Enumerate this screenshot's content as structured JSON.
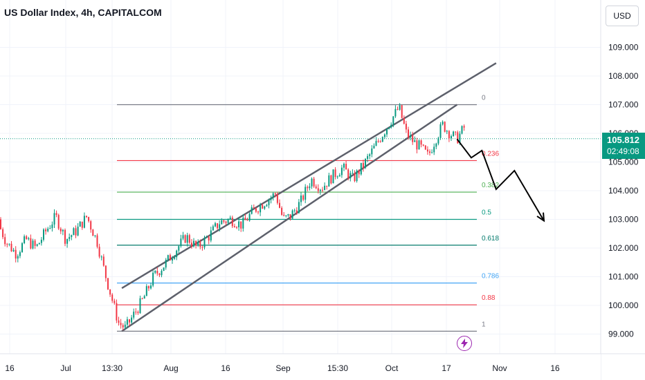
{
  "header": {
    "title": "US Dollar Index, 4h, CAPITALCOM"
  },
  "currency_button": {
    "label": "USD"
  },
  "price_tag": {
    "price": "105.812",
    "countdown": "02:49:08",
    "color": "#089981"
  },
  "chart_data": {
    "type": "candlestick",
    "title": "US Dollar Index, 4h, CAPITALCOM",
    "y_ticks": [
      "109.000",
      "108.000",
      "107.000",
      "106.000",
      "105.000",
      "104.000",
      "103.000",
      "102.000",
      "101.000",
      "100.000",
      "99.000"
    ],
    "y_range": [
      98.5,
      110.3
    ],
    "x_ticks": [
      "16",
      "Jul",
      "13:30",
      "Aug",
      "16",
      "Sep",
      "15:30",
      "Oct",
      "17",
      "Nov",
      "16"
    ],
    "current_price": 105.812,
    "price_path": [
      [
        "Jun 12",
        103.0
      ],
      [
        "Jun 15",
        102.2
      ],
      [
        "Jun 18",
        101.8
      ],
      [
        "Jun 21",
        102.3
      ],
      [
        "Jun 24",
        102.0
      ],
      [
        "Jun 27",
        102.6
      ],
      [
        "Jun 30",
        103.1
      ],
      [
        "Jul 3",
        102.3
      ],
      [
        "Jul 6",
        102.6
      ],
      [
        "Jul 9",
        103.1
      ],
      [
        "Jul 12",
        102.2
      ],
      [
        "Jul 14",
        101.2
      ],
      [
        "Jul 16",
        100.3
      ],
      [
        "Jul 18",
        99.4
      ],
      [
        "Jul 20",
        99.2
      ],
      [
        "Jul 22",
        99.6
      ],
      [
        "Jul 25",
        100.2
      ],
      [
        "Jul 28",
        101.0
      ],
      [
        "Jul 31",
        101.4
      ],
      [
        "Aug 3",
        101.9
      ],
      [
        "Aug 6",
        102.4
      ],
      [
        "Aug 9",
        102.0
      ],
      [
        "Aug 12",
        102.4
      ],
      [
        "Aug 15",
        102.9
      ],
      [
        "Aug 18",
        103.0
      ],
      [
        "Aug 21",
        102.8
      ],
      [
        "Aug 24",
        103.3
      ],
      [
        "Aug 27",
        103.6
      ],
      [
        "Aug 30",
        103.9
      ],
      [
        "Sep 1",
        103.0
      ],
      [
        "Sep 3",
        103.1
      ],
      [
        "Sep 6",
        103.6
      ],
      [
        "Sep 9",
        104.4
      ],
      [
        "Sep 12",
        104.1
      ],
      [
        "Sep 15",
        104.5
      ],
      [
        "Sep 18",
        104.8
      ],
      [
        "Sep 21",
        104.4
      ],
      [
        "Sep 24",
        104.9
      ],
      [
        "Sep 27",
        105.5
      ],
      [
        "Sep 30",
        106.1
      ],
      [
        "Oct 2",
        106.5
      ],
      [
        "Oct 4",
        106.9
      ],
      [
        "Oct 6",
        106.0
      ],
      [
        "Oct 8",
        105.7
      ],
      [
        "Oct 10",
        105.5
      ],
      [
        "Oct 12",
        105.2
      ],
      [
        "Oct 14",
        105.8
      ],
      [
        "Oct 16",
        106.3
      ],
      [
        "Oct 18",
        106.0
      ],
      [
        "Oct 20",
        105.8
      ],
      [
        "Oct 22",
        106.2
      ],
      [
        "Oct 24",
        105.81
      ]
    ],
    "fibonacci_levels": [
      {
        "label": "0",
        "value": 107.0,
        "color": "#787b86"
      },
      {
        "label": "0.236",
        "value": 105.05,
        "color": "#f23645"
      },
      {
        "label": "0.382",
        "value": 103.95,
        "color": "#4caf50"
      },
      {
        "label": "0.5",
        "value": 103.0,
        "color": "#089981"
      },
      {
        "label": "0.618",
        "value": 102.1,
        "color": "#00796b"
      },
      {
        "label": "0.786",
        "value": 100.78,
        "color": "#42a5f5"
      },
      {
        "label": "0.88",
        "value": 100.02,
        "color": "#f23645"
      },
      {
        "label": "1",
        "value": 99.1,
        "color": "#787b86"
      }
    ],
    "channel": {
      "upper": [
        [
          "Jul 19",
          100.6
        ],
        [
          "Oct 31",
          108.45
        ]
      ],
      "lower": [
        [
          "Jul 19",
          99.1
        ],
        [
          "Oct 20",
          107.0
        ]
      ]
    },
    "projection": [
      [
        "Oct 20",
        105.8
      ],
      [
        "Oct 24",
        105.15
      ],
      [
        "Oct 27",
        105.4
      ],
      [
        "Oct 31",
        104.05
      ],
      [
        "Nov 5",
        104.7
      ],
      [
        "Nov 13",
        102.95
      ]
    ],
    "colors": {
      "up": "#089981",
      "down": "#f23645",
      "line": "#787b86",
      "arrow": "#000000"
    }
  }
}
